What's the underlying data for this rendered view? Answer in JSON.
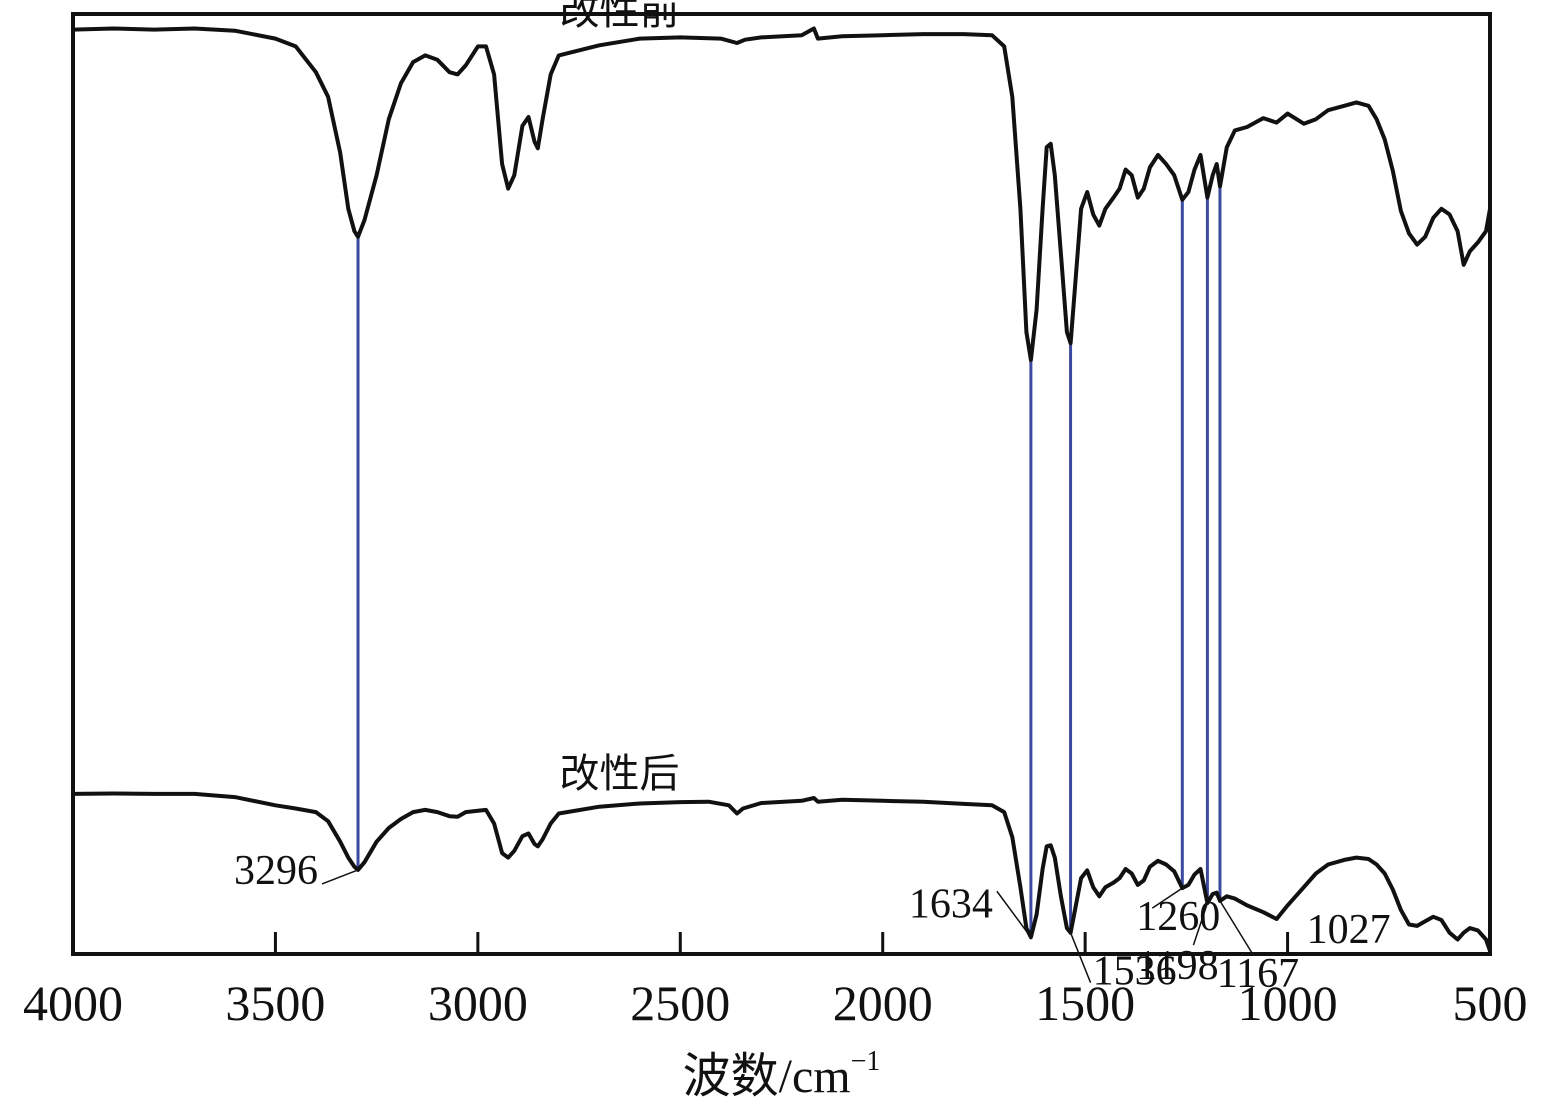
{
  "chart_data": {
    "type": "line",
    "xlabel": "波数/cm",
    "xlabel_sup": "−1",
    "xlim": [
      4000,
      500
    ],
    "x_reversed": true,
    "xticks": [
      4000,
      3500,
      3000,
      2500,
      2000,
      1500,
      1000,
      500
    ],
    "ylabel": "",
    "yticks_shown": false,
    "grid": false,
    "line_color": "#111111",
    "marker_line_color": "#3b4a9e",
    "series": [
      {
        "name": "改性前",
        "points": [
          [
            4000,
            0.92
          ],
          [
            3900,
            0.921
          ],
          [
            3800,
            0.92
          ],
          [
            3700,
            0.921
          ],
          [
            3600,
            0.919
          ],
          [
            3500,
            0.912
          ],
          [
            3450,
            0.905
          ],
          [
            3400,
            0.882
          ],
          [
            3370,
            0.86
          ],
          [
            3340,
            0.81
          ],
          [
            3320,
            0.76
          ],
          [
            3305,
            0.74
          ],
          [
            3296,
            0.735
          ],
          [
            3280,
            0.75
          ],
          [
            3250,
            0.79
          ],
          [
            3220,
            0.84
          ],
          [
            3190,
            0.872
          ],
          [
            3160,
            0.891
          ],
          [
            3130,
            0.897
          ],
          [
            3100,
            0.893
          ],
          [
            3070,
            0.882
          ],
          [
            3050,
            0.88
          ],
          [
            3030,
            0.888
          ],
          [
            3000,
            0.905
          ],
          [
            2980,
            0.905
          ],
          [
            2960,
            0.88
          ],
          [
            2940,
            0.8
          ],
          [
            2925,
            0.778
          ],
          [
            2910,
            0.79
          ],
          [
            2890,
            0.834
          ],
          [
            2875,
            0.842
          ],
          [
            2860,
            0.82
          ],
          [
            2852,
            0.814
          ],
          [
            2840,
            0.84
          ],
          [
            2820,
            0.88
          ],
          [
            2800,
            0.897
          ],
          [
            2700,
            0.906
          ],
          [
            2600,
            0.912
          ],
          [
            2500,
            0.913
          ],
          [
            2400,
            0.912
          ],
          [
            2360,
            0.908
          ],
          [
            2340,
            0.911
          ],
          [
            2300,
            0.913
          ],
          [
            2200,
            0.915
          ],
          [
            2170,
            0.921
          ],
          [
            2160,
            0.912
          ],
          [
            2100,
            0.914
          ],
          [
            2000,
            0.915
          ],
          [
            1900,
            0.916
          ],
          [
            1800,
            0.916
          ],
          [
            1730,
            0.915
          ],
          [
            1700,
            0.905
          ],
          [
            1680,
            0.86
          ],
          [
            1660,
            0.76
          ],
          [
            1645,
            0.65
          ],
          [
            1634,
            0.625
          ],
          [
            1620,
            0.67
          ],
          [
            1605,
            0.76
          ],
          [
            1595,
            0.815
          ],
          [
            1585,
            0.818
          ],
          [
            1575,
            0.79
          ],
          [
            1560,
            0.72
          ],
          [
            1545,
            0.65
          ],
          [
            1536,
            0.64
          ],
          [
            1525,
            0.69
          ],
          [
            1510,
            0.76
          ],
          [
            1495,
            0.775
          ],
          [
            1480,
            0.755
          ],
          [
            1465,
            0.745
          ],
          [
            1450,
            0.76
          ],
          [
            1430,
            0.77
          ],
          [
            1415,
            0.778
          ],
          [
            1400,
            0.795
          ],
          [
            1385,
            0.79
          ],
          [
            1370,
            0.77
          ],
          [
            1355,
            0.778
          ],
          [
            1340,
            0.797
          ],
          [
            1320,
            0.808
          ],
          [
            1300,
            0.8
          ],
          [
            1280,
            0.79
          ],
          [
            1260,
            0.768
          ],
          [
            1245,
            0.775
          ],
          [
            1230,
            0.795
          ],
          [
            1215,
            0.808
          ],
          [
            1198,
            0.77
          ],
          [
            1185,
            0.79
          ],
          [
            1175,
            0.8
          ],
          [
            1167,
            0.78
          ],
          [
            1150,
            0.815
          ],
          [
            1130,
            0.83
          ],
          [
            1100,
            0.833
          ],
          [
            1060,
            0.841
          ],
          [
            1027,
            0.837
          ],
          [
            1000,
            0.845
          ],
          [
            960,
            0.836
          ],
          [
            930,
            0.84
          ],
          [
            900,
            0.848
          ],
          [
            860,
            0.852
          ],
          [
            830,
            0.855
          ],
          [
            800,
            0.852
          ],
          [
            780,
            0.84
          ],
          [
            760,
            0.822
          ],
          [
            740,
            0.794
          ],
          [
            720,
            0.758
          ],
          [
            700,
            0.738
          ],
          [
            680,
            0.728
          ],
          [
            660,
            0.735
          ],
          [
            640,
            0.752
          ],
          [
            620,
            0.76
          ],
          [
            600,
            0.755
          ],
          [
            580,
            0.74
          ],
          [
            565,
            0.71
          ],
          [
            550,
            0.722
          ],
          [
            530,
            0.73
          ],
          [
            510,
            0.74
          ],
          [
            500,
            0.76
          ]
        ]
      },
      {
        "name": "改性后",
        "points": [
          [
            4000,
            0.365
          ],
          [
            3900,
            0.366
          ],
          [
            3800,
            0.365
          ],
          [
            3700,
            0.365
          ],
          [
            3600,
            0.358
          ],
          [
            3500,
            0.34
          ],
          [
            3450,
            0.333
          ],
          [
            3400,
            0.325
          ],
          [
            3370,
            0.305
          ],
          [
            3340,
            0.26
          ],
          [
            3320,
            0.225
          ],
          [
            3305,
            0.205
          ],
          [
            3296,
            0.198
          ],
          [
            3280,
            0.215
          ],
          [
            3250,
            0.26
          ],
          [
            3220,
            0.29
          ],
          [
            3190,
            0.31
          ],
          [
            3160,
            0.325
          ],
          [
            3130,
            0.33
          ],
          [
            3100,
            0.325
          ],
          [
            3070,
            0.316
          ],
          [
            3050,
            0.315
          ],
          [
            3030,
            0.325
          ],
          [
            3000,
            0.328
          ],
          [
            2980,
            0.33
          ],
          [
            2960,
            0.3
          ],
          [
            2940,
            0.235
          ],
          [
            2925,
            0.225
          ],
          [
            2910,
            0.24
          ],
          [
            2890,
            0.272
          ],
          [
            2875,
            0.278
          ],
          [
            2860,
            0.255
          ],
          [
            2852,
            0.25
          ],
          [
            2840,
            0.265
          ],
          [
            2820,
            0.3
          ],
          [
            2800,
            0.322
          ],
          [
            2700,
            0.337
          ],
          [
            2600,
            0.344
          ],
          [
            2500,
            0.347
          ],
          [
            2430,
            0.348
          ],
          [
            2380,
            0.34
          ],
          [
            2360,
            0.322
          ],
          [
            2345,
            0.333
          ],
          [
            2300,
            0.345
          ],
          [
            2200,
            0.35
          ],
          [
            2170,
            0.356
          ],
          [
            2160,
            0.348
          ],
          [
            2100,
            0.352
          ],
          [
            2000,
            0.35
          ],
          [
            1900,
            0.348
          ],
          [
            1800,
            0.343
          ],
          [
            1730,
            0.34
          ],
          [
            1700,
            0.325
          ],
          [
            1680,
            0.27
          ],
          [
            1660,
            0.16
          ],
          [
            1645,
            0.07
          ],
          [
            1634,
            0.05
          ],
          [
            1620,
            0.1
          ],
          [
            1605,
            0.2
          ],
          [
            1595,
            0.25
          ],
          [
            1585,
            0.252
          ],
          [
            1575,
            0.225
          ],
          [
            1560,
            0.14
          ],
          [
            1545,
            0.07
          ],
          [
            1536,
            0.06
          ],
          [
            1525,
            0.11
          ],
          [
            1510,
            0.18
          ],
          [
            1495,
            0.197
          ],
          [
            1480,
            0.16
          ],
          [
            1465,
            0.14
          ],
          [
            1450,
            0.16
          ],
          [
            1430,
            0.17
          ],
          [
            1415,
            0.18
          ],
          [
            1400,
            0.2
          ],
          [
            1385,
            0.19
          ],
          [
            1370,
            0.165
          ],
          [
            1355,
            0.175
          ],
          [
            1340,
            0.205
          ],
          [
            1320,
            0.218
          ],
          [
            1300,
            0.21
          ],
          [
            1280,
            0.195
          ],
          [
            1260,
            0.158
          ],
          [
            1245,
            0.165
          ],
          [
            1230,
            0.188
          ],
          [
            1215,
            0.2
          ],
          [
            1198,
            0.125
          ],
          [
            1185,
            0.145
          ],
          [
            1175,
            0.148
          ],
          [
            1167,
            0.13
          ],
          [
            1150,
            0.14
          ],
          [
            1130,
            0.135
          ],
          [
            1100,
            0.12
          ],
          [
            1060,
            0.105
          ],
          [
            1027,
            0.09
          ],
          [
            1000,
            0.12
          ],
          [
            960,
            0.16
          ],
          [
            930,
            0.19
          ],
          [
            900,
            0.21
          ],
          [
            860,
            0.22
          ],
          [
            830,
            0.225
          ],
          [
            800,
            0.222
          ],
          [
            780,
            0.21
          ],
          [
            760,
            0.19
          ],
          [
            740,
            0.155
          ],
          [
            720,
            0.11
          ],
          [
            700,
            0.078
          ],
          [
            680,
            0.075
          ],
          [
            660,
            0.085
          ],
          [
            640,
            0.095
          ],
          [
            620,
            0.088
          ],
          [
            600,
            0.06
          ],
          [
            580,
            0.045
          ],
          [
            565,
            0.06
          ],
          [
            550,
            0.07
          ],
          [
            530,
            0.065
          ],
          [
            510,
            0.045
          ],
          [
            500,
            0.02
          ]
        ]
      }
    ],
    "peak_lines": [
      3296,
      1634,
      1536,
      1260,
      1198,
      1167
    ],
    "annotations": [
      {
        "text": "3296",
        "x": 3296,
        "series": 1
      },
      {
        "text": "1634",
        "x": 1634,
        "series": 1
      },
      {
        "text": "1536",
        "x": 1536,
        "series": 1
      },
      {
        "text": "1260",
        "x": 1260,
        "series": 1
      },
      {
        "text": "1198",
        "x": 1198,
        "series": 1
      },
      {
        "text": "1167",
        "x": 1167,
        "series": 1
      },
      {
        "text": "1027",
        "x": 1027,
        "series": 1
      }
    ]
  }
}
